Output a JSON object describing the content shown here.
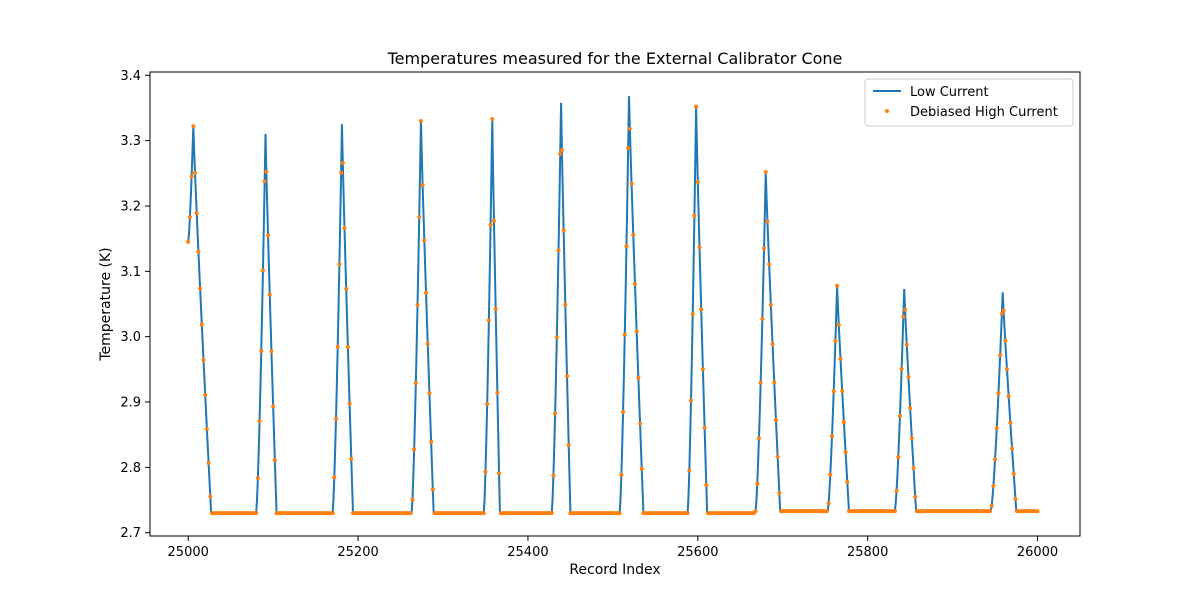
{
  "chart_data": {
    "type": "line",
    "title": "Temperatures measured for the External Calibrator Cone",
    "xlabel": "Record Index",
    "ylabel": "Temperature (K)",
    "xlim": [
      24955,
      26050
    ],
    "ylim": [
      2.695,
      3.405
    ],
    "x_ticks": [
      25000,
      25200,
      25400,
      25600,
      25800,
      26000
    ],
    "x_tick_labels": [
      "25000",
      "25200",
      "25400",
      "25600",
      "25800",
      "26000"
    ],
    "y_ticks": [
      2.7,
      2.8,
      2.9,
      3.0,
      3.1,
      3.2,
      3.3,
      3.4
    ],
    "y_tick_labels": [
      "2.7",
      "2.8",
      "2.9",
      "3.0",
      "3.1",
      "3.2",
      "3.3",
      "3.4"
    ],
    "grid": false,
    "legend_position": "top-right",
    "baseline": 2.73,
    "peaks": [
      {
        "x": 25000,
        "y": 3.145,
        "rise": 7,
        "peak": 25006,
        "peak_y": 3.322,
        "fall_end": 25027,
        "base": 2.73
      },
      {
        "x": 25080,
        "rise": 10,
        "peak": 25091,
        "peak_y": 3.31,
        "fall_end": 25104,
        "base": 2.73
      },
      {
        "x": 25170,
        "rise": 10,
        "peak": 25181,
        "peak_y": 3.325,
        "fall_end": 25194,
        "base": 2.73
      },
      {
        "x": 25263,
        "rise": 10,
        "peak": 25274,
        "peak_y": 3.33,
        "fall_end": 25289,
        "base": 2.73
      },
      {
        "x": 25348,
        "rise": 10,
        "peak": 25358,
        "peak_y": 3.333,
        "fall_end": 25367,
        "base": 2.73
      },
      {
        "x": 25428,
        "rise": 10,
        "peak": 25439,
        "peak_y": 3.358,
        "fall_end": 25450,
        "base": 2.73
      },
      {
        "x": 25508,
        "rise": 11,
        "peak": 25519,
        "peak_y": 3.368,
        "fall_end": 25536,
        "base": 2.73
      },
      {
        "x": 25588,
        "rise": 10,
        "peak": 25598,
        "peak_y": 3.352,
        "fall_end": 25611,
        "base": 2.73
      },
      {
        "x": 25668,
        "rise": 11,
        "peak": 25680,
        "peak_y": 3.252,
        "fall_end": 25697,
        "base": 2.733
      },
      {
        "x": 25753,
        "rise": 10,
        "peak": 25764,
        "peak_y": 3.078,
        "fall_end": 25778,
        "base": 2.733
      },
      {
        "x": 25832,
        "rise": 10,
        "peak": 25843,
        "peak_y": 3.073,
        "fall_end": 25857,
        "base": 2.733
      },
      {
        "x": 25945,
        "rise": 13,
        "peak": 25959,
        "peak_y": 3.068,
        "fall_end": 25975,
        "base": 2.733
      }
    ],
    "x_end": 26000,
    "series": [
      {
        "name": "Low Current",
        "style": "line",
        "color": "#1f77b4"
      },
      {
        "name": "Debiased High Current",
        "style": "scatter",
        "color": "#ff7f0e"
      }
    ]
  }
}
